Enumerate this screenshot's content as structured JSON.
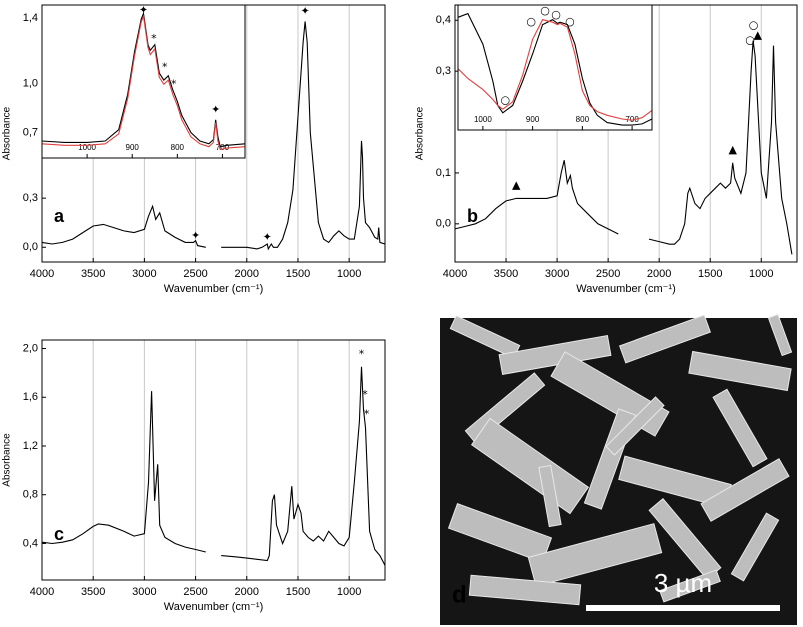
{
  "chart_data": [
    {
      "type": "line",
      "label": "a",
      "xlabel": "Wavenumber (cm⁻¹)",
      "ylabel": "Absorbance",
      "xlim": [
        4000,
        650
      ],
      "ylim": [
        -0.09,
        1.48
      ],
      "grid": true,
      "xticks": [
        4000,
        3500,
        3000,
        2500,
        2000,
        1500,
        1000
      ],
      "yticks": [
        {
          "value": 0,
          "label": "0,0"
        },
        {
          "value": 0.3,
          "label": "0,3"
        },
        {
          "value": 0.7,
          "label": "0,7"
        },
        {
          "value": 1,
          "label": "1,0"
        },
        {
          "value": 1.4,
          "label": "1,4"
        }
      ],
      "series": [
        {
          "color": "#000000",
          "x": [
            4000,
            3900,
            3800,
            3700,
            3600,
            3500,
            3400,
            3300,
            3200,
            3100,
            3000,
            2960,
            2920,
            2890,
            2850,
            2800,
            2700,
            2600,
            2520,
            2500,
            2480,
            2400,
            2325,
            2250,
            2100,
            2000,
            1900,
            1850,
            1800,
            1790,
            1760,
            1740,
            1700,
            1650,
            1600,
            1550,
            1500,
            1450,
            1430,
            1410,
            1380,
            1300,
            1250,
            1200,
            1150,
            1100,
            1050,
            1000,
            950,
            900,
            880,
            870,
            860,
            840,
            800,
            750,
            720,
            712,
            700,
            650
          ],
          "values": [
            0.03,
            0.02,
            0.03,
            0.05,
            0.09,
            0.13,
            0.14,
            0.12,
            0.1,
            0.09,
            0.11,
            0.19,
            0.25,
            0.17,
            0.21,
            0.1,
            0.06,
            0.03,
            0.03,
            0.04,
            0.01,
            0.0,
            null,
            0.0,
            0.0,
            0.0,
            -0.01,
            0.0,
            0.02,
            -0.01,
            0.02,
            0.0,
            0.0,
            0.05,
            0.15,
            0.35,
            0.8,
            1.25,
            1.38,
            1.25,
            0.7,
            0.15,
            0.05,
            0.03,
            0.07,
            0.1,
            0.07,
            0.05,
            0.05,
            0.25,
            0.65,
            0.55,
            0.3,
            0.15,
            0.12,
            0.06,
            0.05,
            0.12,
            0.03,
            0.02
          ]
        }
      ],
      "annotations": [
        {
          "text": "✦",
          "x": 1430,
          "y": 1.44
        },
        {
          "text": "✦",
          "x": 2500,
          "y": 0.07
        },
        {
          "text": "✦",
          "x": 1800,
          "y": 0.06
        }
      ]
    },
    {
      "type": "line",
      "xlim": [
        1100,
        650
      ],
      "ylim": [
        0,
        1.08
      ],
      "xticks": [
        1000,
        900,
        800,
        700
      ],
      "series": [
        {
          "color": "#000000",
          "x": [
            1100,
            1050,
            1000,
            960,
            930,
            910,
            895,
            880,
            875,
            865,
            860,
            850,
            840,
            830,
            820,
            810,
            800,
            790,
            770,
            750,
            730,
            720,
            715,
            710,
            705,
            690,
            650
          ],
          "values": [
            0.12,
            0.11,
            0.11,
            0.12,
            0.2,
            0.45,
            0.75,
            0.98,
            1.02,
            0.8,
            0.76,
            0.8,
            0.6,
            0.55,
            0.58,
            0.48,
            0.4,
            0.3,
            0.18,
            0.12,
            0.1,
            0.13,
            0.27,
            0.15,
            0.08,
            0.09,
            0.1
          ]
        },
        {
          "color": "#e04040",
          "x": [
            1100,
            1050,
            1000,
            960,
            930,
            910,
            895,
            880,
            875,
            865,
            860,
            850,
            840,
            830,
            820,
            810,
            800,
            790,
            770,
            750,
            730,
            720,
            715,
            710,
            705,
            690,
            650
          ],
          "values": [
            0.1,
            0.09,
            0.09,
            0.1,
            0.17,
            0.42,
            0.72,
            0.96,
            1.0,
            0.78,
            0.73,
            0.77,
            0.57,
            0.52,
            0.55,
            0.45,
            0.37,
            0.27,
            0.15,
            0.1,
            0.08,
            0.11,
            0.25,
            0.12,
            0.06,
            0.07,
            0.08
          ]
        }
      ],
      "annotations": [
        {
          "text": "✦",
          "x": 875,
          "y": 1.04
        },
        {
          "text": "*",
          "x": 852,
          "y": 0.84
        },
        {
          "text": "*",
          "x": 828,
          "y": 0.64
        },
        {
          "text": "*",
          "x": 808,
          "y": 0.52
        },
        {
          "text": "✦",
          "x": 715,
          "y": 0.34
        }
      ]
    },
    {
      "type": "line",
      "label": "b",
      "xlabel": "Wavenumber (cm⁻¹)",
      "ylabel": "Absorbance",
      "xlim": [
        4000,
        650
      ],
      "ylim": [
        -0.075,
        0.43
      ],
      "grid": true,
      "xticks": [
        4000,
        3500,
        3000,
        2500,
        2000,
        1500,
        1000
      ],
      "yticks": [
        {
          "value": 0,
          "label": "0,0"
        },
        {
          "value": 0.1,
          "label": "0,1"
        },
        {
          "value": 0.3,
          "label": "0,3"
        },
        {
          "value": 0.4,
          "label": "0,4"
        }
      ],
      "series": [
        {
          "color": "#000000",
          "x": [
            4000,
            3900,
            3800,
            3700,
            3600,
            3500,
            3400,
            3300,
            3200,
            3100,
            3000,
            2960,
            2930,
            2900,
            2870,
            2850,
            2800,
            2700,
            2600,
            2500,
            2400,
            2250,
            2100,
            2000,
            1900,
            1850,
            1800,
            1750,
            1720,
            1700,
            1650,
            1600,
            1550,
            1500,
            1450,
            1400,
            1350,
            1300,
            1280,
            1260,
            1200,
            1150,
            1100,
            1080,
            1060,
            1000,
            950,
            900,
            880,
            860,
            800,
            750,
            700
          ],
          "values": [
            -0.01,
            -0.005,
            0.0,
            0.01,
            0.03,
            0.045,
            0.05,
            0.05,
            0.05,
            0.05,
            0.055,
            0.1,
            0.125,
            0.08,
            0.095,
            0.07,
            0.04,
            0.02,
            0.0,
            -0.01,
            -0.02,
            null,
            -0.03,
            -0.035,
            -0.04,
            -0.04,
            -0.03,
            0.0,
            0.06,
            0.07,
            0.04,
            0.03,
            0.05,
            0.06,
            0.07,
            0.08,
            0.07,
            0.08,
            0.12,
            0.09,
            0.06,
            0.1,
            0.3,
            0.36,
            0.33,
            0.1,
            0.05,
            0.2,
            0.35,
            0.2,
            0.05,
            0.0,
            -0.06
          ]
        }
      ],
      "annotations": [
        {
          "text": "▲",
          "x": 3400,
          "y": 0.075
        },
        {
          "text": "▲",
          "x": 1280,
          "y": 0.145
        },
        {
          "text": "○",
          "x": 1110,
          "y": 0.36
        },
        {
          "text": "○",
          "x": 1075,
          "y": 0.39
        },
        {
          "text": "▲",
          "x": 1035,
          "y": 0.37
        }
      ]
    },
    {
      "type": "line",
      "xlim": [
        1050,
        660
      ],
      "ylim": [
        0,
        1.02
      ],
      "xticks": [
        1000,
        900,
        800,
        700
      ],
      "series": [
        {
          "color": "#000000",
          "x": [
            1050,
            1030,
            1000,
            980,
            970,
            960,
            940,
            920,
            900,
            880,
            860,
            850,
            845,
            830,
            815,
            800,
            785,
            770,
            750,
            720,
            700,
            680,
            660
          ],
          "values": [
            0.92,
            0.95,
            0.7,
            0.4,
            0.2,
            0.14,
            0.2,
            0.4,
            0.62,
            0.86,
            0.9,
            0.87,
            0.88,
            0.86,
            0.7,
            0.42,
            0.22,
            0.12,
            0.06,
            0.04,
            0.04,
            0.05,
            0.09
          ]
        },
        {
          "color": "#e04040",
          "x": [
            1050,
            1030,
            1000,
            980,
            970,
            960,
            940,
            920,
            900,
            880,
            860,
            850,
            845,
            830,
            815,
            800,
            785,
            770,
            750,
            720,
            700,
            680,
            660
          ],
          "values": [
            0.5,
            0.42,
            0.33,
            0.25,
            0.2,
            0.17,
            0.23,
            0.45,
            0.74,
            0.9,
            0.88,
            0.86,
            0.87,
            0.84,
            0.62,
            0.32,
            0.2,
            0.15,
            0.12,
            0.09,
            0.08,
            0.1,
            0.16
          ]
        }
      ],
      "annotations": [
        {
          "text": "○",
          "x": 955,
          "y": 0.24
        },
        {
          "text": "○",
          "x": 903,
          "y": 0.88
        },
        {
          "text": "○",
          "x": 875,
          "y": 0.97
        },
        {
          "text": "○",
          "x": 853,
          "y": 0.94
        },
        {
          "text": "○",
          "x": 825,
          "y": 0.88
        }
      ]
    },
    {
      "type": "line",
      "label": "c",
      "xlabel": "Wavenumber (cm⁻¹)",
      "ylabel": "Absorbance",
      "xlim": [
        4000,
        650
      ],
      "ylim": [
        0.1,
        2.07
      ],
      "grid": true,
      "xticks": [
        4000,
        3500,
        3000,
        2500,
        2000,
        1500,
        1000
      ],
      "yticks": [
        {
          "value": 0.4,
          "label": "0,4"
        },
        {
          "value": 0.8,
          "label": "0,8"
        },
        {
          "value": 1.2,
          "label": "1,2"
        },
        {
          "value": 1.6,
          "label": "1,6"
        },
        {
          "value": 2,
          "label": "2,0"
        }
      ],
      "series": [
        {
          "color": "#000000",
          "x": [
            4000,
            3900,
            3800,
            3700,
            3600,
            3500,
            3450,
            3350,
            3200,
            3100,
            3000,
            2960,
            2930,
            2900,
            2870,
            2850,
            2800,
            2700,
            2600,
            2500,
            2400,
            2325,
            2250,
            2100,
            2000,
            1900,
            1800,
            1780,
            1750,
            1730,
            1710,
            1650,
            1600,
            1560,
            1540,
            1500,
            1470,
            1450,
            1400,
            1350,
            1300,
            1250,
            1200,
            1150,
            1100,
            1050,
            1000,
            950,
            900,
            880,
            860,
            840,
            800,
            750,
            700,
            650
          ],
          "values": [
            0.41,
            0.4,
            0.41,
            0.43,
            0.48,
            0.54,
            0.56,
            0.55,
            0.5,
            0.46,
            0.48,
            0.9,
            1.65,
            0.75,
            1.05,
            0.55,
            0.45,
            0.4,
            0.37,
            0.35,
            0.33,
            null,
            0.3,
            0.29,
            0.28,
            0.27,
            0.26,
            0.3,
            0.75,
            0.8,
            0.55,
            0.4,
            0.5,
            0.87,
            0.6,
            0.72,
            0.65,
            0.5,
            0.45,
            0.42,
            0.46,
            0.42,
            0.5,
            0.45,
            0.4,
            0.38,
            0.45,
            0.9,
            1.4,
            1.85,
            1.5,
            1.35,
            0.5,
            0.35,
            0.3,
            0.22
          ]
        }
      ],
      "annotations": [
        {
          "text": "*",
          "x": 880,
          "y": 1.95
        },
        {
          "text": "*",
          "x": 845,
          "y": 1.62
        },
        {
          "text": "*",
          "x": 830,
          "y": 1.46
        }
      ]
    }
  ],
  "image_panel": {
    "label": "d",
    "scale_bar": "3 µm"
  }
}
